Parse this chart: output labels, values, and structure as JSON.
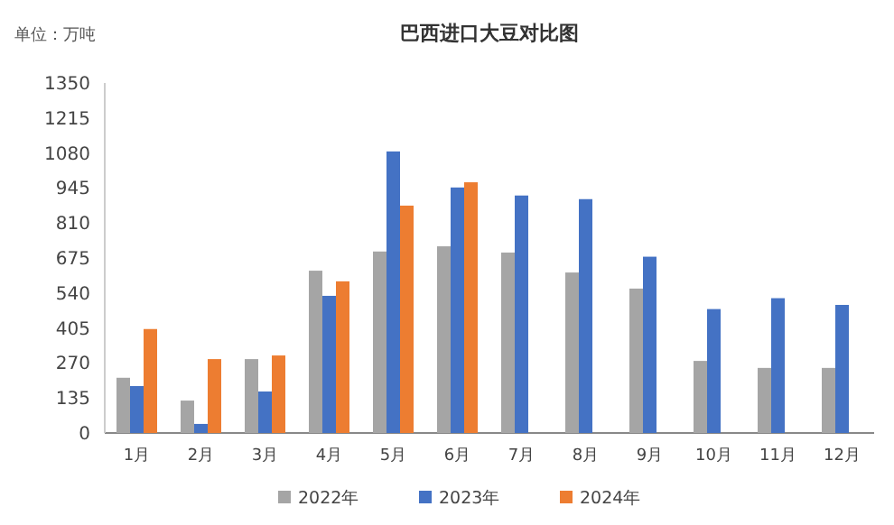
{
  "chart_data": {
    "type": "bar",
    "title": "巴西进口大豆对比图",
    "annotations": [
      "单位：万吨"
    ],
    "categories": [
      "1月",
      "2月",
      "3月",
      "4月",
      "5月",
      "6月",
      "7月",
      "8月",
      "9月",
      "10月",
      "11月",
      "12月"
    ],
    "series": [
      {
        "name": "2022年",
        "color": "#a5a5a5",
        "values": [
          213,
          125,
          285,
          626,
          700,
          720,
          696,
          619,
          557,
          278,
          251,
          251
        ]
      },
      {
        "name": "2023年",
        "color": "#4472c4",
        "values": [
          181,
          35,
          160,
          529,
          1086,
          947,
          916,
          902,
          680,
          478,
          520,
          494
        ]
      },
      {
        "name": "2024年",
        "color": "#ed7d31",
        "values": [
          401,
          285,
          299,
          585,
          877,
          967,
          null,
          null,
          null,
          null,
          null,
          null
        ]
      }
    ],
    "ylim": [
      0,
      1350
    ],
    "yticks": [
      0,
      135,
      270,
      405,
      540,
      675,
      810,
      945,
      1080,
      1215,
      1350
    ],
    "grid": false,
    "legend": "bottom"
  }
}
